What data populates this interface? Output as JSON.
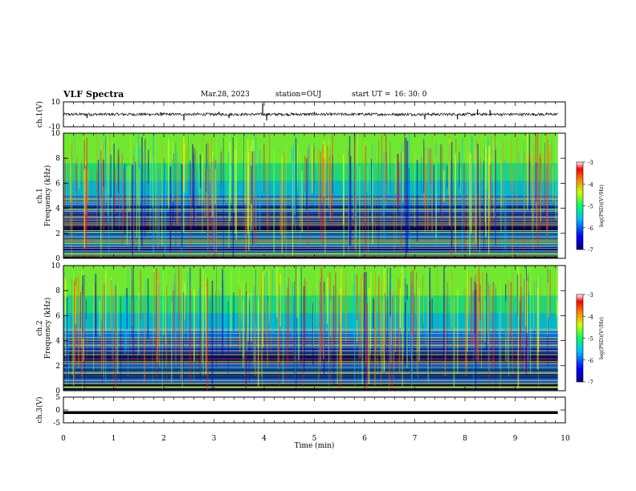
{
  "header": {
    "title": "VLF Spectra",
    "date": "Mar.28, 2023",
    "station": "station=OUJ",
    "start_label": "start  UT =",
    "start_time": "16: 30: 0"
  },
  "colors": {
    "background": "#ffffff",
    "axis": "#000000",
    "colormap_low": "#00007f",
    "colormap_mid": "#00ff00",
    "colormap_high": "#ff0000"
  },
  "chart_data": [
    {
      "id": "ch1-waveform",
      "type": "line",
      "ylabel": "ch.1(V)",
      "ylim": [
        -10,
        10
      ],
      "yticks": [
        "10",
        "-10"
      ],
      "series": [
        {
          "values_note_free": true,
          "baseline": 0,
          "amplitude": 1.2
        }
      ],
      "spikes": [
        [
          0.47,
          -3
        ],
        [
          1.95,
          1.5
        ],
        [
          2.4,
          -5
        ],
        [
          3.1,
          2
        ],
        [
          3.3,
          -3
        ],
        [
          3.97,
          9
        ],
        [
          4.05,
          -5
        ],
        [
          5.0,
          2
        ],
        [
          7.2,
          -4
        ],
        [
          7.85,
          -4
        ],
        [
          8.25,
          4
        ],
        [
          8.5,
          3.5
        ]
      ]
    },
    {
      "id": "ch1-spectrogram",
      "type": "heatmap",
      "ylabel": "ch.1\nFrequency (kHz)",
      "ylim": [
        0,
        10
      ],
      "yticks": [
        "0",
        "2",
        "4",
        "6",
        "8",
        "10"
      ],
      "colorbar": {
        "label": "log(PSD)(V²/Hz)",
        "ticks": [
          "-3",
          "-4",
          "-5",
          "-6",
          "-7"
        ],
        "range": [
          -7,
          -3
        ]
      }
    },
    {
      "id": "ch2-spectrogram",
      "type": "heatmap",
      "ylabel": "ch.2\nFrequency (kHz)",
      "ylim": [
        0,
        10
      ],
      "yticks": [
        "0",
        "2",
        "4",
        "6",
        "8",
        "10"
      ],
      "colorbar": {
        "label": "log(PSD)(V²/Hz)",
        "ticks": [
          "-3",
          "-4",
          "-5",
          "-6",
          "-7"
        ],
        "range": [
          -7,
          -3
        ]
      }
    },
    {
      "id": "ch3-waveform",
      "type": "line",
      "ylabel": "ch.3(V)",
      "ylim": [
        -5,
        5
      ],
      "yticks": [
        "5",
        "0",
        "-5"
      ],
      "series": [
        {
          "baseline": -1.0
        }
      ]
    }
  ],
  "xaxis": {
    "label": "Time (min)",
    "ticks": [
      "0",
      "1",
      "2",
      "3",
      "4",
      "5",
      "6",
      "7",
      "8",
      "9",
      "10"
    ],
    "range": [
      0,
      10
    ]
  }
}
